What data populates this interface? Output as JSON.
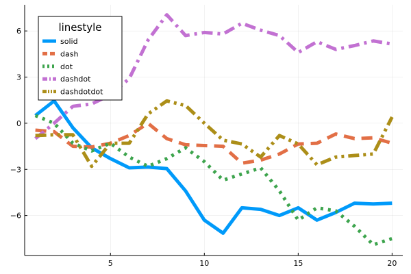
{
  "chart_data": {
    "type": "line",
    "title": "",
    "xlabel": "",
    "ylabel": "",
    "grid": true,
    "xlim": [
      0.43,
      20.57
    ],
    "ylim": [
      -8.6,
      7.7
    ],
    "x_ticks": [
      5,
      10,
      15,
      20
    ],
    "y_ticks": [
      -6,
      -3,
      0,
      3,
      6
    ],
    "y_tick_labels": [
      "−6",
      "−3",
      "0",
      "3",
      "6"
    ],
    "x": [
      1,
      2,
      3,
      4,
      5,
      6,
      7,
      8,
      9,
      10,
      11,
      12,
      13,
      14,
      15,
      16,
      17,
      18,
      19,
      20
    ],
    "legend": {
      "title": "linestyle",
      "position": "top-left"
    },
    "series": [
      {
        "name": "solid",
        "linestyle": "solid",
        "color": "#009AFA",
        "values": [
          0.5,
          1.45,
          -0.3,
          -1.6,
          -2.3,
          -2.9,
          -2.85,
          -2.95,
          -4.4,
          -6.3,
          -7.15,
          -5.5,
          -5.6,
          -6.0,
          -5.5,
          -6.3,
          -5.8,
          -5.2,
          -5.25,
          -5.2
        ]
      },
      {
        "name": "dash",
        "linestyle": "dash",
        "color": "#E26F46",
        "values": [
          -0.45,
          -0.55,
          -1.5,
          -1.55,
          -1.3,
          -0.8,
          0.0,
          -1.0,
          -1.4,
          -1.45,
          -1.5,
          -2.6,
          -2.4,
          -2.0,
          -1.35,
          -1.3,
          -0.7,
          -1.0,
          -0.95,
          -1.3
        ]
      },
      {
        "name": "dot",
        "linestyle": "dot",
        "color": "#3DA44D",
        "values": [
          0.5,
          0.0,
          -1.3,
          -1.8,
          -1.3,
          -2.2,
          -2.8,
          -2.3,
          -1.6,
          -2.5,
          -3.7,
          -3.3,
          -2.9,
          -4.4,
          -6.3,
          -5.5,
          -5.7,
          -6.7,
          -7.9,
          -7.5
        ]
      },
      {
        "name": "dashdot",
        "linestyle": "dashdot",
        "color": "#C271D2",
        "values": [
          -1.0,
          0.0,
          1.1,
          1.25,
          1.85,
          2.9,
          5.4,
          7.05,
          5.7,
          5.9,
          5.8,
          6.5,
          6.05,
          5.7,
          4.6,
          5.3,
          4.8,
          5.05,
          5.35,
          5.15
        ]
      },
      {
        "name": "dashdotdot",
        "linestyle": "dashdotdot",
        "color": "#AC8E18",
        "values": [
          -0.8,
          -0.75,
          -0.75,
          -2.8,
          -1.3,
          -1.3,
          0.6,
          1.45,
          1.15,
          0.0,
          -1.1,
          -1.35,
          -2.2,
          -0.8,
          -1.35,
          -2.7,
          -2.2,
          -2.1,
          -2.0,
          0.4
        ]
      }
    ]
  }
}
